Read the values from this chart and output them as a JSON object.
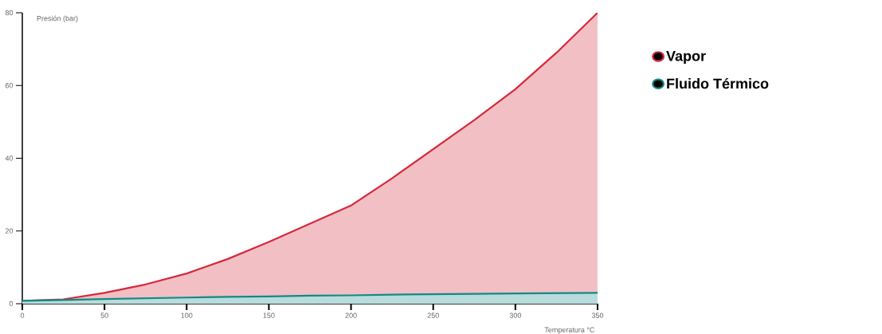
{
  "chart_data": {
    "type": "area",
    "xlabel": "Temperatura   °C",
    "ylabel": "Presión (bar)",
    "x": [
      0,
      25,
      50,
      75,
      100,
      125,
      150,
      175,
      200,
      225,
      250,
      275,
      300,
      325,
      350
    ],
    "series": [
      {
        "name": "Vapor",
        "color": "#d42a3c",
        "values": [
          0.8,
          1.2,
          3,
          5.3,
          8.3,
          12.3,
          17,
          22,
          27,
          34.5,
          42.5,
          50.5,
          59,
          69,
          80
        ]
      },
      {
        "name": "Fluido Térmico",
        "color": "#128a86",
        "values": [
          0.8,
          1.0,
          1.3,
          1.5,
          1.7,
          1.9,
          2.0,
          2.2,
          2.3,
          2.5,
          2.6,
          2.7,
          2.8,
          2.9,
          3.0
        ]
      }
    ],
    "xlim": [
      0,
      350
    ],
    "ylim": [
      0,
      80
    ],
    "xticks": [
      0,
      50,
      100,
      150,
      200,
      250,
      300,
      350
    ],
    "yticks": [
      0,
      20,
      40,
      60,
      80
    ],
    "grid": false,
    "legend": "right",
    "marker": "none",
    "line_style": "solid"
  }
}
